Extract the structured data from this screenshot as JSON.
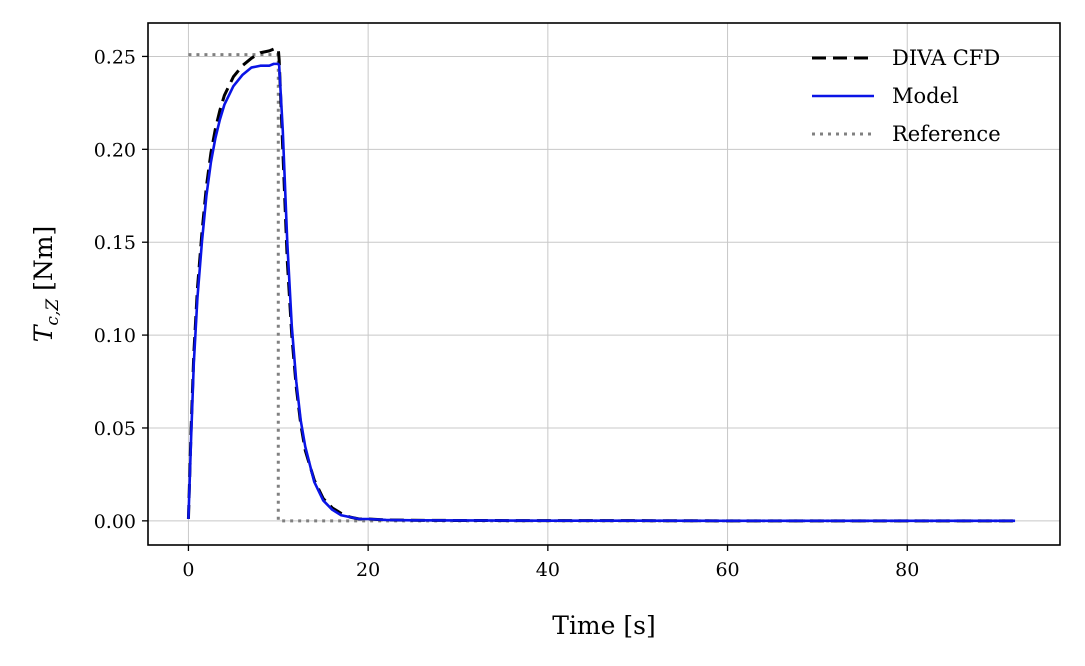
{
  "chart_data": {
    "type": "line",
    "xlabel": "Time [s]",
    "ylabel_main": "T",
    "ylabel_sub": "c,Z",
    "ylabel_unit": "[Nm]",
    "xlim": [
      -4.5,
      97
    ],
    "ylim": [
      -0.013,
      0.268
    ],
    "xticks": [
      0,
      20,
      40,
      60,
      80
    ],
    "xtick_labels": [
      "0",
      "20",
      "40",
      "60",
      "80"
    ],
    "yticks": [
      0.0,
      0.05,
      0.1,
      0.15,
      0.2,
      0.25
    ],
    "ytick_labels": [
      "0.00",
      "0.05",
      "0.10",
      "0.15",
      "0.20",
      "0.25"
    ],
    "grid": true,
    "legend_position": "top-right",
    "series": [
      {
        "name": "DIVA CFD",
        "color": "#000000",
        "style": "dashed",
        "x": [
          0,
          0.3,
          0.6,
          1,
          1.5,
          2,
          2.5,
          3,
          3.5,
          4,
          5,
          6,
          7,
          8,
          9,
          9.5,
          10,
          10.1,
          10.5,
          11,
          11.5,
          12,
          12.5,
          13,
          14,
          15,
          16,
          17,
          18,
          19,
          20,
          22,
          25,
          30,
          40,
          50,
          60,
          70,
          80,
          92
        ],
        "y": [
          0.001,
          0.05,
          0.09,
          0.125,
          0.155,
          0.18,
          0.198,
          0.211,
          0.221,
          0.229,
          0.239,
          0.245,
          0.249,
          0.252,
          0.253,
          0.254,
          0.254,
          0.248,
          0.2,
          0.14,
          0.1,
          0.072,
          0.052,
          0.038,
          0.022,
          0.012,
          0.007,
          0.004,
          0.002,
          0.001,
          0.001,
          0.0005,
          0.0003,
          0.0002,
          0.0001,
          0.0001,
          0.0,
          0.0,
          0.0,
          0.0
        ]
      },
      {
        "name": "Model",
        "color": "#0a14e6",
        "style": "solid",
        "x": [
          0,
          0.3,
          0.6,
          1,
          1.5,
          2,
          2.5,
          3,
          3.5,
          4,
          5,
          6,
          7,
          8,
          9,
          9.5,
          10,
          10.1,
          10.5,
          11,
          11.5,
          12,
          12.5,
          13,
          14,
          15,
          16,
          17,
          18,
          19,
          20,
          22,
          25,
          30,
          40,
          50,
          60,
          70,
          80,
          92
        ],
        "y": [
          0.001,
          0.045,
          0.085,
          0.12,
          0.15,
          0.175,
          0.193,
          0.206,
          0.216,
          0.224,
          0.234,
          0.24,
          0.244,
          0.245,
          0.245,
          0.246,
          0.246,
          0.245,
          0.21,
          0.15,
          0.105,
          0.075,
          0.054,
          0.04,
          0.021,
          0.011,
          0.006,
          0.003,
          0.002,
          0.001,
          0.001,
          0.0005,
          0.0003,
          0.0002,
          0.0001,
          0.0001,
          0.0,
          0.0,
          0.0,
          0.0
        ]
      },
      {
        "name": "Reference",
        "color": "#808080",
        "style": "dotted",
        "x": [
          0,
          10,
          10,
          92
        ],
        "y": [
          0.251,
          0.251,
          0.0,
          0.0
        ]
      }
    ]
  }
}
